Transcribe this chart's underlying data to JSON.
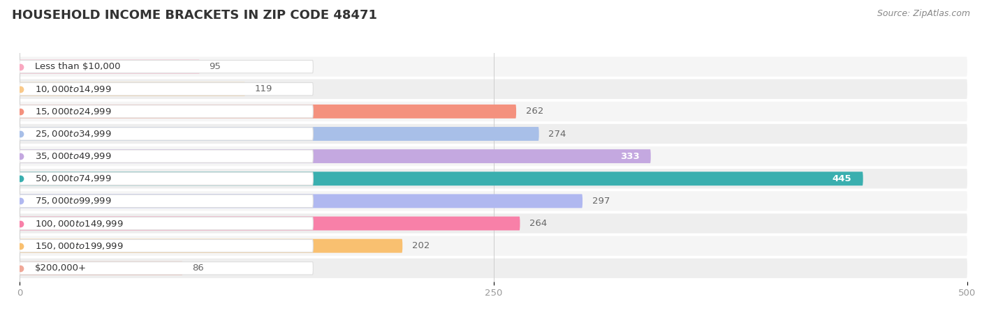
{
  "title": "HOUSEHOLD INCOME BRACKETS IN ZIP CODE 48471",
  "source": "Source: ZipAtlas.com",
  "categories": [
    "Less than $10,000",
    "$10,000 to $14,999",
    "$15,000 to $24,999",
    "$25,000 to $34,999",
    "$35,000 to $49,999",
    "$50,000 to $74,999",
    "$75,000 to $99,999",
    "$100,000 to $149,999",
    "$150,000 to $199,999",
    "$200,000+"
  ],
  "values": [
    95,
    119,
    262,
    274,
    333,
    445,
    297,
    264,
    202,
    86
  ],
  "bar_colors": [
    "#f9a8c0",
    "#f9c98a",
    "#f4917e",
    "#a8bfe8",
    "#c4a8e0",
    "#3aafaf",
    "#b0b8f0",
    "#f880a8",
    "#f9c070",
    "#f0a898"
  ],
  "xlim": [
    0,
    500
  ],
  "xticks": [
    0,
    250,
    500
  ],
  "background_color": "#ffffff",
  "title_fontsize": 13,
  "label_fontsize": 9.5,
  "value_fontsize": 9.5,
  "source_fontsize": 9
}
